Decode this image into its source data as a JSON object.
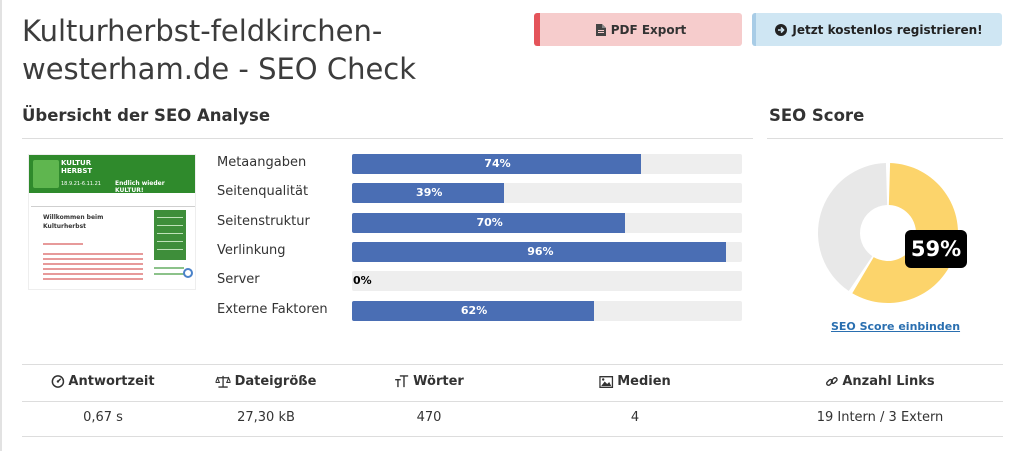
{
  "page": {
    "title": "Kulturherbst-feldkirchen-westerham.de - SEO Check"
  },
  "actions": {
    "pdf_export": "PDF Export",
    "register": "Jetzt kostenlos registrieren!"
  },
  "overview": {
    "heading": "Übersicht der SEO Analyse",
    "metrics": [
      {
        "label": "Metaangaben",
        "value": 74,
        "display": "74%"
      },
      {
        "label": "Seitenqualität",
        "value": 39,
        "display": "39%"
      },
      {
        "label": "Seitenstruktur",
        "value": 70,
        "display": "70%"
      },
      {
        "label": "Verlinkung",
        "value": 96,
        "display": "96%"
      },
      {
        "label": "Server",
        "value": 0,
        "display": "0%"
      },
      {
        "label": "Externe Faktoren",
        "value": 62,
        "display": "62%"
      }
    ]
  },
  "thumbnail": {
    "logo_line1": "KULTUR",
    "logo_line2": "HERBST",
    "logo_dates": "18.9.21-6.11.21",
    "slogan": "Endlich wieder KULTUR!",
    "heading_line1": "Willkommen beim",
    "heading_line2": "Kulturherbst"
  },
  "score": {
    "heading": "SEO Score",
    "value": 59,
    "display": "59%",
    "embed_link": "SEO Score einbinden",
    "colors": {
      "filled": "#fcd46b",
      "empty": "#e8e8e8"
    }
  },
  "stats": {
    "headers": [
      {
        "label": "Antwortzeit",
        "icon": "gauge-icon"
      },
      {
        "label": "Dateigröße",
        "icon": "scale-icon"
      },
      {
        "label": "Wörter",
        "icon": "text-size-icon"
      },
      {
        "label": "Medien",
        "icon": "image-icon"
      },
      {
        "label": "Anzahl Links",
        "icon": "link-icon"
      }
    ],
    "values": [
      "0,67 s",
      "27,30 kB",
      "470",
      "4",
      "19 Intern / 3 Extern"
    ]
  }
}
